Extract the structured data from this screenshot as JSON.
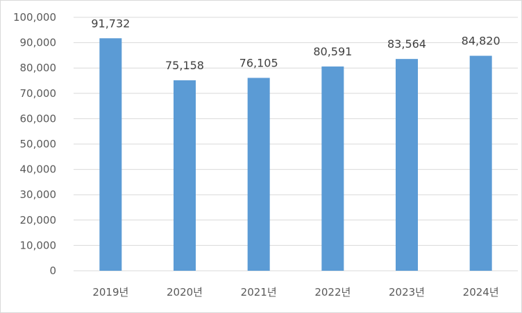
{
  "chart_data": {
    "type": "bar",
    "title": "",
    "xlabel": "",
    "ylabel": "",
    "categories": [
      "2019년",
      "2020년",
      "2021년",
      "2022년",
      "2023년",
      "2024년"
    ],
    "values": [
      91732,
      75158,
      76105,
      80591,
      83564,
      84820
    ],
    "data_labels": [
      "91,732",
      "75,158",
      "76,105",
      "80,591",
      "83,564",
      "84,820"
    ],
    "ylim": [
      0,
      100000
    ],
    "yticks": [
      0,
      10000,
      20000,
      30000,
      40000,
      50000,
      60000,
      70000,
      80000,
      90000,
      100000
    ],
    "ytick_labels": [
      "0",
      "10,000",
      "20,000",
      "30,000",
      "40,000",
      "50,000",
      "60,000",
      "70,000",
      "80,000",
      "90,000",
      "100,000"
    ],
    "grid": true,
    "legend": "none",
    "bar_color": "#5B9BD5",
    "grid_color": "#D9D9D9"
  }
}
